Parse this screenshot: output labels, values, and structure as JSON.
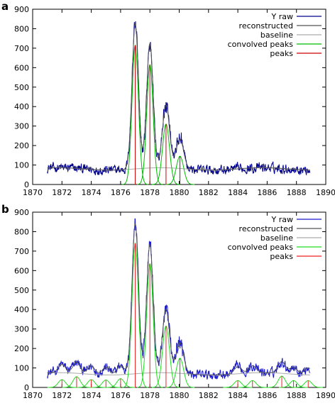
{
  "chart_data": [
    {
      "panel_label": "a",
      "type": "line",
      "xlim": [
        1870,
        1890
      ],
      "ylim": [
        0,
        900
      ],
      "xticks": [
        1870,
        1872,
        1874,
        1876,
        1878,
        1880,
        1882,
        1884,
        1886,
        1888,
        1890
      ],
      "yticks": [
        0,
        100,
        200,
        300,
        400,
        500,
        600,
        700,
        800,
        900
      ],
      "grid": false,
      "legend_position": "top-right",
      "baseline_level": 80,
      "peaks": [
        {
          "x": 1877.0,
          "height": 715,
          "width": 0.22
        },
        {
          "x": 1878.0,
          "height": 615,
          "width": 0.22
        },
        {
          "x": 1879.1,
          "height": 310,
          "width": 0.24
        },
        {
          "x": 1880.05,
          "height": 145,
          "width": 0.25
        }
      ],
      "series": [
        {
          "name": "Y raw",
          "color": "#00008b"
        },
        {
          "name": "reconstructed",
          "color": "#555555"
        },
        {
          "name": "baseline",
          "color": "#aaaaaa"
        },
        {
          "name": "convolved peaks",
          "color": "#00bb00"
        },
        {
          "name": "peaks",
          "color": "#cc0000"
        }
      ]
    },
    {
      "panel_label": "b",
      "type": "line",
      "xlim": [
        1870,
        1890
      ],
      "ylim": [
        0,
        900
      ],
      "xticks": [
        1870,
        1872,
        1874,
        1876,
        1878,
        1880,
        1882,
        1884,
        1886,
        1888,
        1890
      ],
      "yticks": [
        0,
        100,
        200,
        300,
        400,
        500,
        600,
        700,
        800,
        900
      ],
      "grid": false,
      "legend_position": "top-right",
      "baseline_level": 70,
      "peaks": [
        {
          "x": 1872.0,
          "height": 40,
          "width": 0.25
        },
        {
          "x": 1873.0,
          "height": 55,
          "width": 0.25
        },
        {
          "x": 1874.0,
          "height": 40,
          "width": 0.25
        },
        {
          "x": 1875.0,
          "height": 38,
          "width": 0.25
        },
        {
          "x": 1876.0,
          "height": 45,
          "width": 0.25
        },
        {
          "x": 1877.0,
          "height": 740,
          "width": 0.22
        },
        {
          "x": 1878.0,
          "height": 635,
          "width": 0.22
        },
        {
          "x": 1879.1,
          "height": 315,
          "width": 0.24
        },
        {
          "x": 1880.05,
          "height": 150,
          "width": 0.25
        },
        {
          "x": 1884.0,
          "height": 35,
          "width": 0.25
        },
        {
          "x": 1885.0,
          "height": 35,
          "width": 0.25
        },
        {
          "x": 1887.0,
          "height": 58,
          "width": 0.25
        },
        {
          "x": 1887.8,
          "height": 35,
          "width": 0.25
        },
        {
          "x": 1888.8,
          "height": 35,
          "width": 0.25
        }
      ],
      "series": [
        {
          "name": "Y raw",
          "color": "#1a1acc"
        },
        {
          "name": "reconstructed",
          "color": "#555555"
        },
        {
          "name": "baseline",
          "color": "#aaaaaa"
        },
        {
          "name": "convolved peaks",
          "color": "#22dd22"
        },
        {
          "name": "peaks",
          "color": "#ee2222"
        }
      ]
    }
  ]
}
